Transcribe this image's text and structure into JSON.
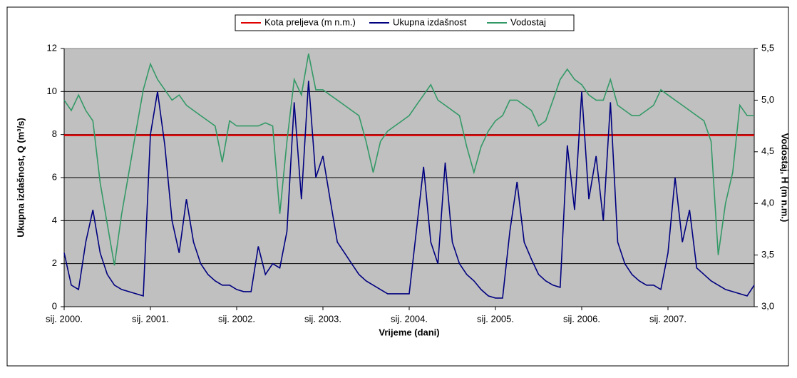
{
  "chart_data": {
    "type": "line",
    "xlabel": "Vrijeme (dani)",
    "ylabel": "Ukupna izdašnost, Q (m³/s)",
    "y2label": "Vodostaj, H (m n.m.)",
    "x": [
      2000,
      2000.083,
      2000.167,
      2000.25,
      2000.333,
      2000.417,
      2000.5,
      2000.583,
      2000.667,
      2000.75,
      2000.833,
      2000.917,
      2001,
      2001.083,
      2001.167,
      2001.25,
      2001.333,
      2001.417,
      2001.5,
      2001.583,
      2001.667,
      2001.75,
      2001.833,
      2001.917,
      2002,
      2002.083,
      2002.167,
      2002.25,
      2002.333,
      2002.417,
      2002.5,
      2002.583,
      2002.667,
      2002.75,
      2002.833,
      2002.917,
      2003,
      2003.083,
      2003.167,
      2003.25,
      2003.333,
      2003.417,
      2003.5,
      2003.583,
      2003.667,
      2003.75,
      2003.833,
      2003.917,
      2004,
      2004.083,
      2004.167,
      2004.25,
      2004.333,
      2004.417,
      2004.5,
      2004.583,
      2004.667,
      2004.75,
      2004.833,
      2004.917,
      2005,
      2005.083,
      2005.167,
      2005.25,
      2005.333,
      2005.417,
      2005.5,
      2005.583,
      2005.667,
      2005.75,
      2005.833,
      2005.917,
      2006,
      2006.083,
      2006.167,
      2006.25,
      2006.333,
      2006.417,
      2006.5,
      2006.583,
      2006.667,
      2006.75,
      2006.833,
      2006.917,
      2007,
      2007.083,
      2007.167,
      2007.25,
      2007.333,
      2007.417,
      2007.5,
      2007.583,
      2007.667,
      2007.75,
      2007.833,
      2007.917,
      2008
    ],
    "xlim": [
      2000,
      2008
    ],
    "xticks": [
      {
        "value": 2000,
        "label": "sij. 2000."
      },
      {
        "value": 2001,
        "label": "sij. 2001."
      },
      {
        "value": 2002,
        "label": "sij. 2002."
      },
      {
        "value": 2003,
        "label": "sij. 2003."
      },
      {
        "value": 2004,
        "label": "sij. 2004."
      },
      {
        "value": 2005,
        "label": "sij. 2005."
      },
      {
        "value": 2006,
        "label": "sij. 2006."
      },
      {
        "value": 2007,
        "label": "sij. 2007."
      }
    ],
    "ylim": [
      0,
      12
    ],
    "yticks": [
      0,
      2,
      4,
      6,
      8,
      10,
      12
    ],
    "y2lim": [
      3,
      5.5
    ],
    "y2ticks": [
      {
        "value": 3,
        "label": "3,0"
      },
      {
        "value": 3.5,
        "label": "3,5"
      },
      {
        "value": 4,
        "label": "4,0"
      },
      {
        "value": 4.5,
        "label": "4,5"
      },
      {
        "value": 5,
        "label": "5,0"
      },
      {
        "value": 5.5,
        "label": "5,5"
      }
    ],
    "grid": true,
    "legend": "top",
    "series": [
      {
        "name": "Kota preljeva (m n.m.)",
        "color": "#e00000",
        "axis": "y2",
        "x": [
          2000,
          2008
        ],
        "values": [
          4.66,
          4.66
        ]
      },
      {
        "name": "Ukupna izdašnost",
        "color": "#000080",
        "values": [
          2.5,
          1.0,
          0.8,
          3.0,
          4.5,
          2.5,
          1.5,
          1.0,
          0.8,
          0.7,
          0.6,
          0.5,
          8.0,
          10.0,
          7.5,
          4.0,
          2.5,
          5.0,
          3.0,
          2.0,
          1.5,
          1.2,
          1.0,
          1.0,
          0.8,
          0.7,
          0.7,
          2.8,
          1.5,
          2.0,
          1.8,
          3.5,
          9.5,
          5.0,
          10.5,
          6.0,
          7.0,
          5.0,
          3.0,
          2.5,
          2.0,
          1.5,
          1.2,
          1.0,
          0.8,
          0.6,
          0.6,
          0.6,
          0.6,
          3.5,
          6.5,
          3.0,
          2.0,
          6.7,
          3.0,
          2.0,
          1.5,
          1.2,
          0.8,
          0.5,
          0.4,
          0.4,
          3.5,
          5.8,
          3.0,
          2.2,
          1.5,
          1.2,
          1.0,
          0.9,
          7.5,
          4.5,
          10.0,
          5.0,
          7.0,
          4.0,
          9.5,
          3.0,
          2.0,
          1.5,
          1.2,
          1.0,
          1.0,
          0.8,
          2.5,
          6.0,
          3.0,
          4.5,
          1.8,
          1.5,
          1.2,
          1.0,
          0.8,
          0.7,
          0.6,
          0.5,
          1.0
        ]
      },
      {
        "name": "Vodostaj",
        "color": "#339966",
        "axis": "y2",
        "values": [
          5.0,
          4.9,
          5.05,
          4.9,
          4.8,
          4.2,
          3.8,
          3.4,
          3.9,
          4.3,
          4.7,
          5.1,
          5.35,
          5.2,
          5.1,
          5.0,
          5.05,
          4.95,
          4.9,
          4.85,
          4.8,
          4.75,
          4.4,
          4.8,
          4.75,
          4.75,
          4.75,
          4.75,
          4.78,
          4.75,
          3.9,
          4.6,
          5.2,
          5.05,
          5.45,
          5.1,
          5.1,
          5.05,
          5.0,
          4.95,
          4.9,
          4.85,
          4.6,
          4.3,
          4.6,
          4.7,
          4.75,
          4.8,
          4.85,
          4.95,
          5.05,
          5.15,
          5.0,
          4.95,
          4.9,
          4.85,
          4.55,
          4.3,
          4.55,
          4.7,
          4.8,
          4.85,
          5.0,
          5.0,
          4.95,
          4.9,
          4.75,
          4.8,
          5.0,
          5.2,
          5.3,
          5.2,
          5.15,
          5.05,
          5.0,
          5.0,
          5.2,
          4.95,
          4.9,
          4.85,
          4.85,
          4.9,
          4.95,
          5.1,
          5.05,
          5.0,
          4.95,
          4.9,
          4.85,
          4.8,
          4.6,
          3.5,
          4.0,
          4.3,
          4.95,
          4.85,
          4.85
        ]
      }
    ]
  }
}
